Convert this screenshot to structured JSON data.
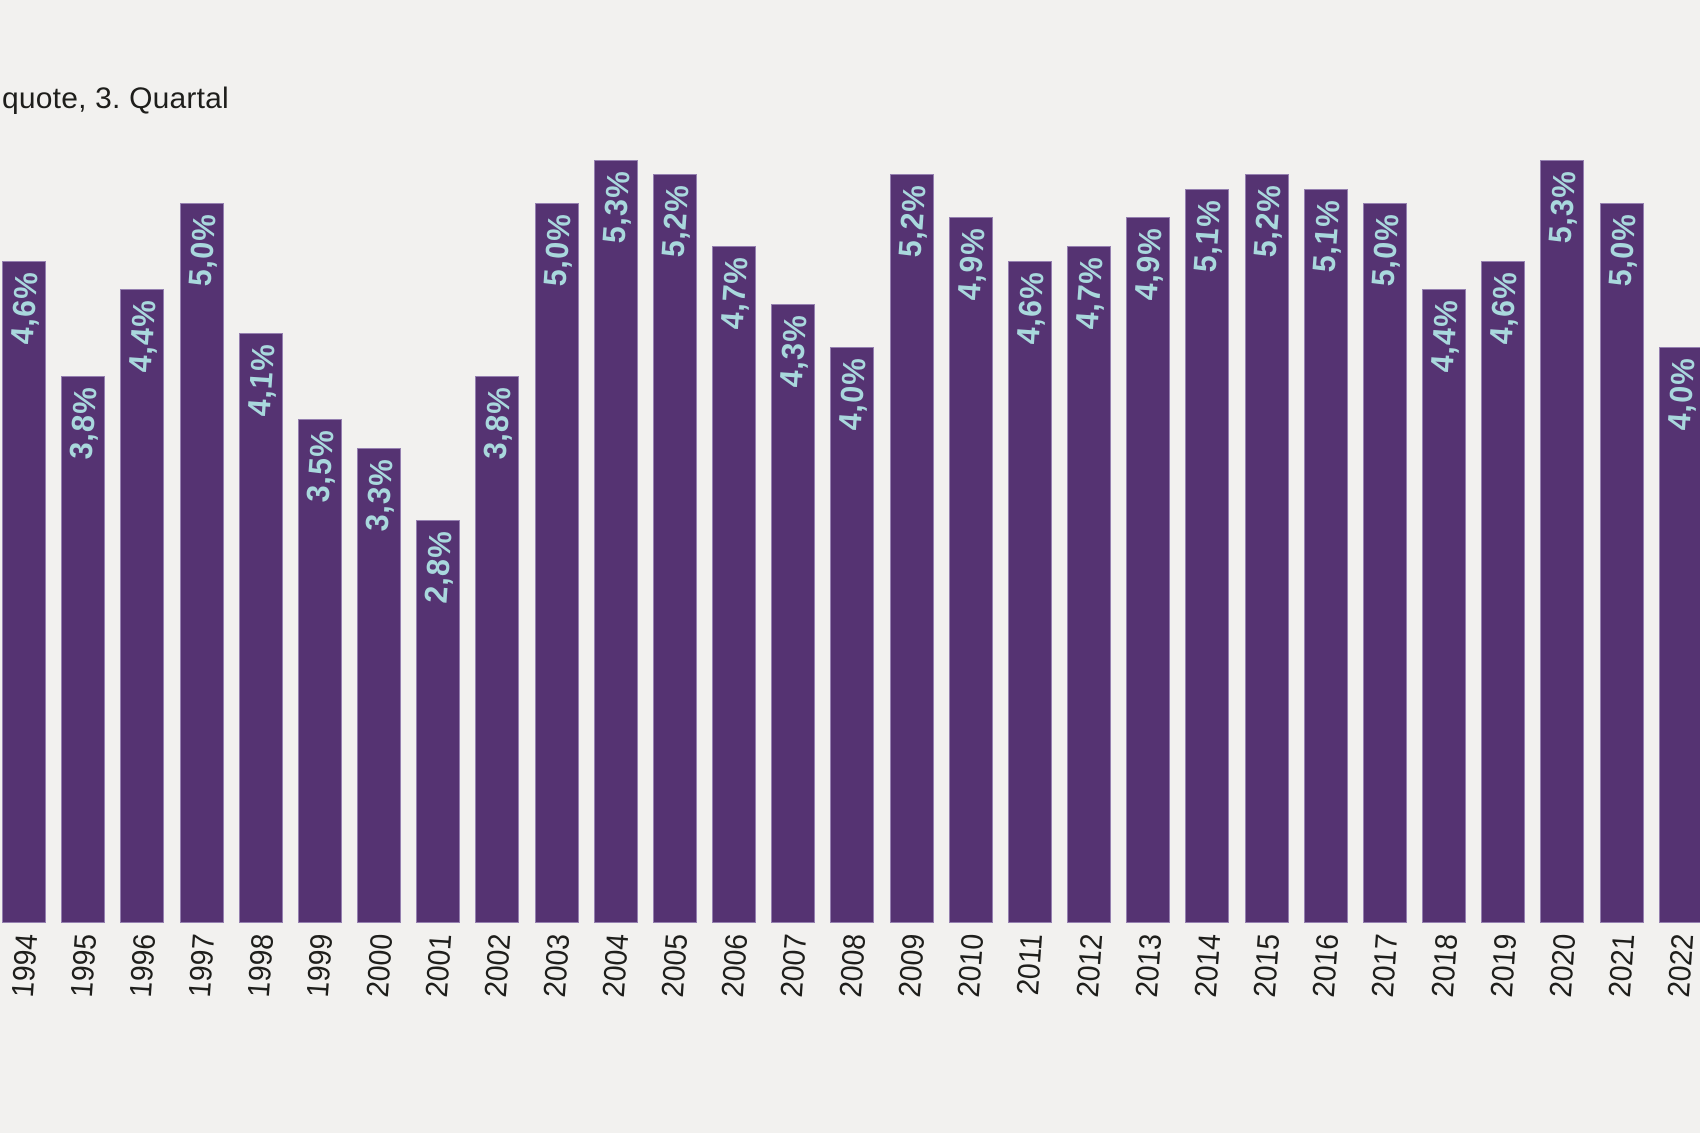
{
  "chart_data": {
    "type": "bar",
    "title": "quote, 3. Quartal",
    "xlabel": "",
    "ylabel": "",
    "categories": [
      "1994",
      "1995",
      "1996",
      "1997",
      "1998",
      "1999",
      "2000",
      "2001",
      "2002",
      "2003",
      "2004",
      "2005",
      "2006",
      "2007",
      "2008",
      "2009",
      "2010",
      "2011",
      "2012",
      "2013",
      "2014",
      "2015",
      "2016",
      "2017",
      "2018",
      "2019",
      "2020",
      "2021",
      "2022"
    ],
    "values": [
      4.6,
      3.8,
      4.4,
      5.0,
      4.1,
      3.5,
      3.3,
      2.8,
      3.8,
      5.0,
      5.3,
      5.2,
      4.7,
      4.3,
      4.0,
      5.2,
      4.9,
      4.6,
      4.7,
      4.9,
      5.1,
      5.2,
      5.1,
      5.0,
      4.4,
      4.6,
      5.3,
      5.0,
      4.0
    ],
    "value_labels": [
      "4,6%",
      "3,8%",
      "4,4%",
      "5,0%",
      "4,1%",
      "3,5%",
      "3,3%",
      "2,8%",
      "3,8%",
      "5,0%",
      "5,3%",
      "5,2%",
      "4,7%",
      "4,3%",
      "4,0%",
      "5,2%",
      "4,9%",
      "4,6%",
      "4,7%",
      "4,9%",
      "5,1%",
      "5,2%",
      "5,1%",
      "5,0%",
      "4,4%",
      "4,6%",
      "5,3%",
      "5,0%",
      "4,0%"
    ],
    "ylim": [
      0,
      5.5
    ],
    "grid": false,
    "legend": "none",
    "bar_label_rotation_deg": -86,
    "x_tick_rotation_deg": -86,
    "colors": {
      "background": "#f2f1ef",
      "bar": "#553372",
      "bar_border": "#9580b0",
      "value_label": "#a9d8dd",
      "axis_text": "#1e1e1b"
    }
  }
}
